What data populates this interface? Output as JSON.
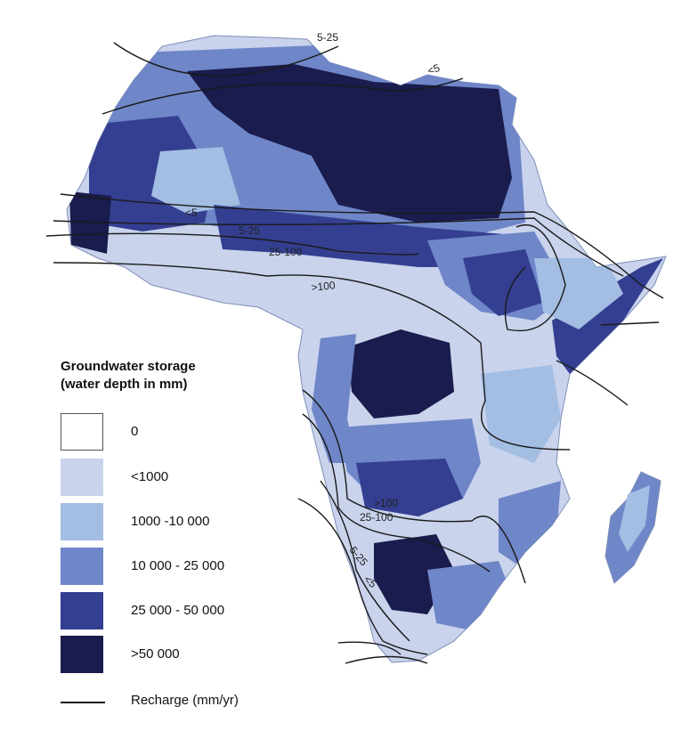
{
  "legend": {
    "title_line1": "Groundwater storage",
    "title_line2": "(water depth in mm)",
    "items": [
      {
        "label": "0",
        "color": "#ffffff"
      },
      {
        "label": "<1000",
        "color": "#c9d3ec"
      },
      {
        "label": "1000 -10 000",
        "color": "#a3bde3"
      },
      {
        "label": "10 000 - 25 000",
        "color": "#6f86c8"
      },
      {
        "label": "25 000 - 50 000",
        "color": "#343f91"
      },
      {
        "label": ">50 000",
        "color": "#1a1c4d"
      }
    ],
    "recharge_label": "Recharge (mm/yr)"
  },
  "recharge_contour_labels": [
    "5-25",
    "<5",
    "<5",
    "5-25",
    "25-100",
    ">100",
    ">100",
    "25-100",
    "5-25",
    "<5"
  ],
  "colors": {
    "ocean": "#ffffff",
    "outline": "#7f8fb8",
    "contour": "#1a1a1a"
  }
}
